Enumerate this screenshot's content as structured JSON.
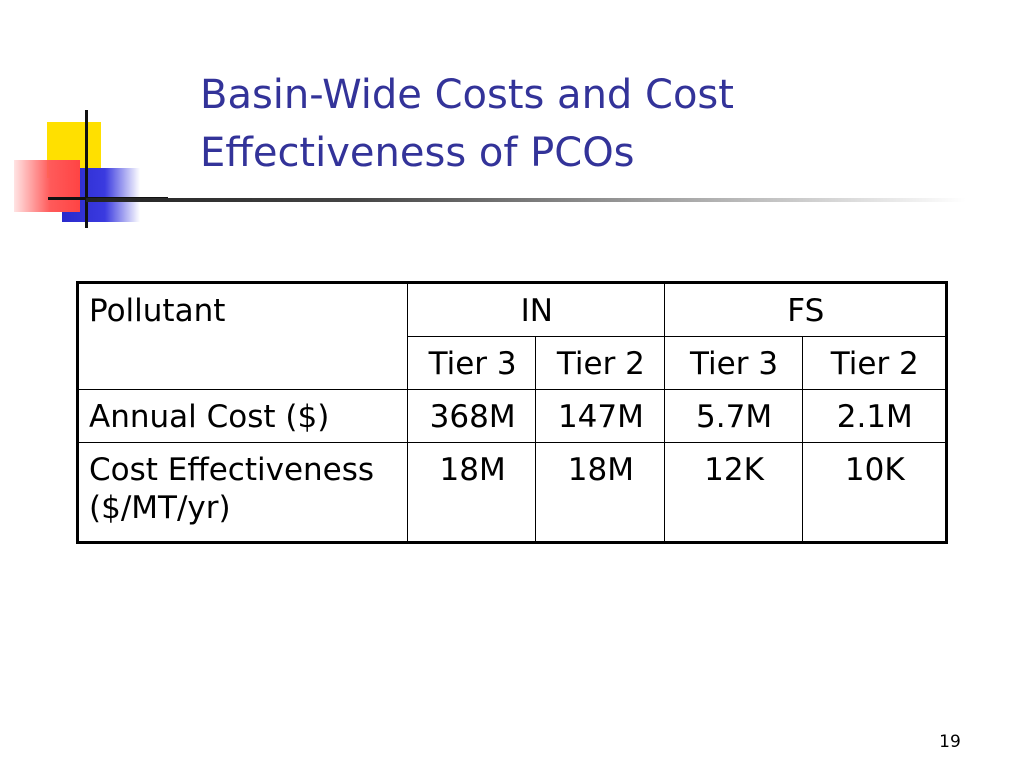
{
  "title": {
    "line1": "Basin-Wide Costs and Cost",
    "line2": "Effectiveness of PCOs"
  },
  "table": {
    "header": {
      "pollutant": "Pollutant",
      "group1": "IN",
      "group2": "FS",
      "sub": [
        "Tier 3",
        "Tier 2",
        "Tier 3",
        "Tier 2"
      ]
    },
    "rows": [
      {
        "label": "Annual Cost ($)",
        "values": [
          "368M",
          "147M",
          "5.7M",
          "2.1M"
        ]
      },
      {
        "label_line1": "Cost Effectiveness",
        "label_line2": "($/MT/yr)",
        "values": [
          "18M",
          "18M",
          "12K",
          "10K"
        ]
      }
    ]
  },
  "page_number": "19"
}
